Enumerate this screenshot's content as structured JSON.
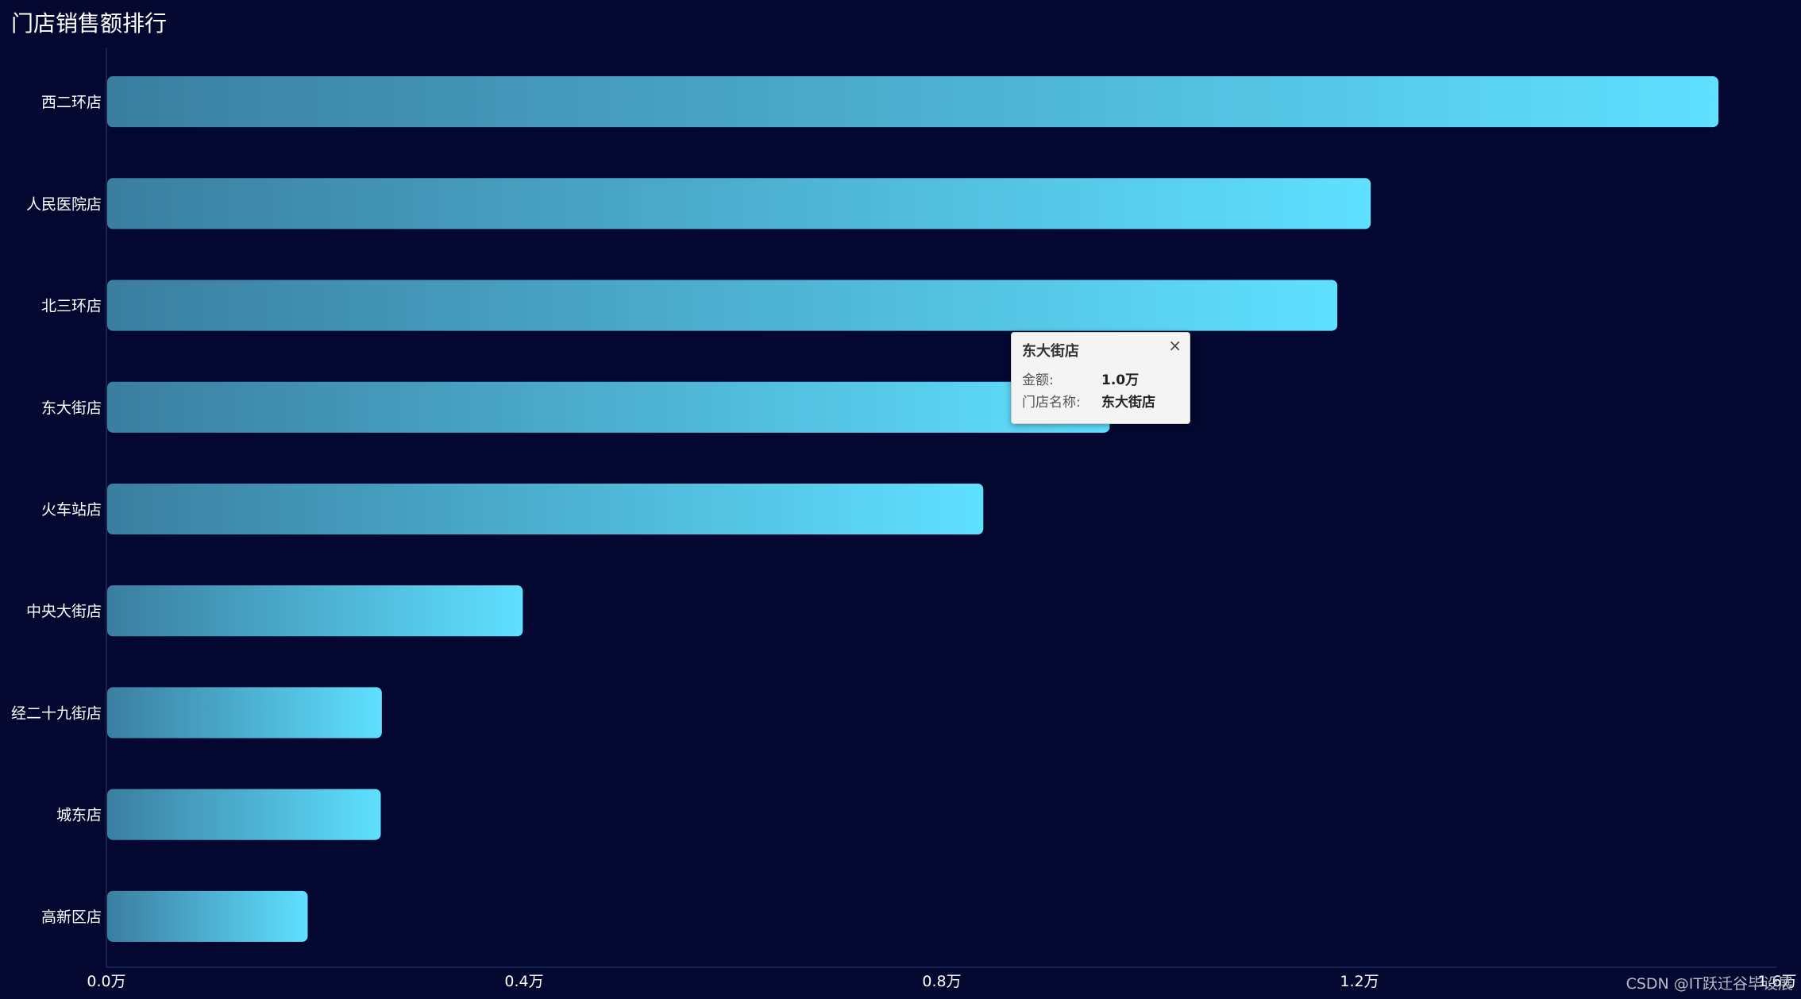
{
  "chart_title": "门店销售额排行",
  "chart_data": {
    "type": "bar",
    "orientation": "horizontal",
    "categories": [
      "西二环店",
      "人民医院店",
      "北三环店",
      "东大街店",
      "火车站店",
      "中央大街店",
      "经二十九街店",
      "城东店",
      "高新区店"
    ],
    "values": [
      15430,
      12100,
      11780,
      9600,
      8390,
      3980,
      2630,
      2620,
      1920
    ],
    "x_ticks": [
      "0.0万",
      "0.4万",
      "0.8万",
      "1.2万",
      "1.6万"
    ],
    "xlim": [
      0,
      16000
    ],
    "bar_gradient": [
      "#3a7ea0",
      "#5fe0ff"
    ]
  },
  "tooltip": {
    "title": "东大街店",
    "close_glyph": "×",
    "rows": [
      {
        "key": "金额:",
        "value": "1.0万"
      },
      {
        "key": "门店名称:",
        "value": "东大街店"
      }
    ]
  },
  "watermark": "CSDN @IT跃迁谷毕设展"
}
